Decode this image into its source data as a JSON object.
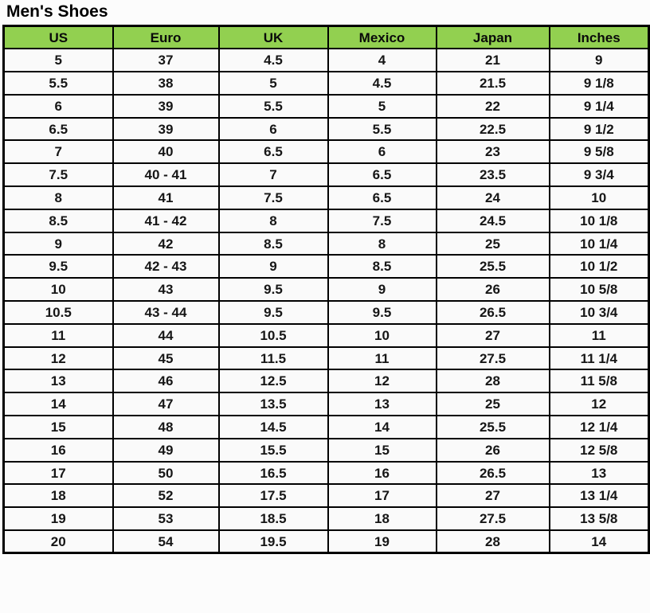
{
  "title": "Men's Shoes",
  "colors": {
    "page_bg": "#fcfcfc",
    "header_bg": "#92d050",
    "cell_bg": "#fafafa",
    "border": "#000000",
    "text": "#161616"
  },
  "chart_data": {
    "type": "table",
    "title": "Men's Shoes",
    "columns": [
      "US",
      "Euro",
      "UK",
      "Mexico",
      "Japan",
      "Inches"
    ],
    "rows": [
      [
        "5",
        "37",
        "4.5",
        "4",
        "21",
        "9"
      ],
      [
        "5.5",
        "38",
        "5",
        "4.5",
        "21.5",
        "9 1/8"
      ],
      [
        "6",
        "39",
        "5.5",
        "5",
        "22",
        "9 1/4"
      ],
      [
        "6.5",
        "39",
        "6",
        "5.5",
        "22.5",
        "9 1/2"
      ],
      [
        "7",
        "40",
        "6.5",
        "6",
        "23",
        "9 5/8"
      ],
      [
        "7.5",
        "40 - 41",
        "7",
        "6.5",
        "23.5",
        "9 3/4"
      ],
      [
        "8",
        "41",
        "7.5",
        "6.5",
        "24",
        "10"
      ],
      [
        "8.5",
        "41 - 42",
        "8",
        "7.5",
        "24.5",
        "10 1/8"
      ],
      [
        "9",
        "42",
        "8.5",
        "8",
        "25",
        "10 1/4"
      ],
      [
        "9.5",
        "42 - 43",
        "9",
        "8.5",
        "25.5",
        "10 1/2"
      ],
      [
        "10",
        "43",
        "9.5",
        "9",
        "26",
        "10 5/8"
      ],
      [
        "10.5",
        "43 - 44",
        "9.5",
        "9.5",
        "26.5",
        "10 3/4"
      ],
      [
        "11",
        "44",
        "10.5",
        "10",
        "27",
        "11"
      ],
      [
        "12",
        "45",
        "11.5",
        "11",
        "27.5",
        "11 1/4"
      ],
      [
        "13",
        "46",
        "12.5",
        "12",
        "28",
        "11 5/8"
      ],
      [
        "14",
        "47",
        "13.5",
        "13",
        "25",
        "12"
      ],
      [
        "15",
        "48",
        "14.5",
        "14",
        "25.5",
        "12 1/4"
      ],
      [
        "16",
        "49",
        "15.5",
        "15",
        "26",
        "12 5/8"
      ],
      [
        "17",
        "50",
        "16.5",
        "16",
        "26.5",
        "13"
      ],
      [
        "18",
        "52",
        "17.5",
        "17",
        "27",
        "13 1/4"
      ],
      [
        "19",
        "53",
        "18.5",
        "18",
        "27.5",
        "13 5/8"
      ],
      [
        "20",
        "54",
        "19.5",
        "19",
        "28",
        "14"
      ]
    ]
  }
}
